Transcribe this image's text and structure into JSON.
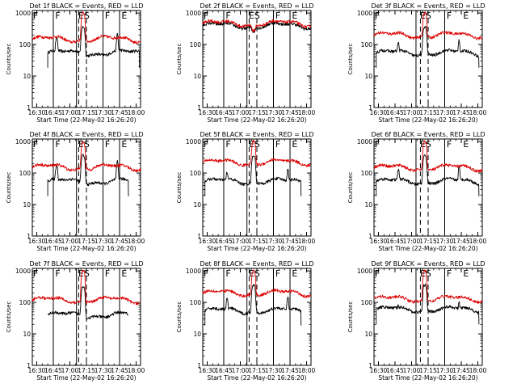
{
  "figure": {
    "panel_titles": [
      "Det 1f BLACK = Events, RED = LLD",
      "Det 2f BLACK = Events, RED = LLD",
      "Det 3f BLACK = Events, RED = LLD",
      "Det 4f BLACK = Events, RED = LLD",
      "Det 5f BLACK = Events, RED = LLD",
      "Det 6f BLACK = Events, RED = LLD",
      "Det 7f BLACK = Events, RED = LLD",
      "Det 8f BLACK = Events, RED = LLD",
      "Det 9f BLACK = Events, RED = LLD"
    ],
    "ylabel": "Counts/sec",
    "xlabel": "Start Time (22-May-02 16:26:20)",
    "x_ticks": [
      "16:30",
      "16:45",
      "17:00",
      "17:15",
      "17:30",
      "17:45",
      "18:00"
    ],
    "y_ticks": [
      "1",
      "10",
      "100",
      "1000"
    ],
    "markers": [
      "F",
      "S",
      "E"
    ],
    "colors": {
      "events": "#000000",
      "lld": "#dd0000",
      "axes": "#000000",
      "background": "#ffffff"
    }
  },
  "chart_data": [
    {
      "type": "line",
      "title": "Det 1f BLACK = Events, RED = LLD",
      "xlabel": "Start Time (22-May-02 16:26:20)",
      "ylabel": "Counts/sec",
      "x_range": [
        "16:26",
        "18:04"
      ],
      "y_scale": "log",
      "ylim": [
        1,
        1200
      ],
      "series": [
        {
          "name": "Events",
          "color": "#000000",
          "start": "16:40",
          "end": "18:03",
          "baseline": 55,
          "peak": 360,
          "edge_spike": 210
        },
        {
          "name": "LLD",
          "color": "#dd0000",
          "start": "16:26",
          "end": "18:04",
          "baseline": 150,
          "peak": 1000,
          "edge_spike": 0
        }
      ],
      "vertical_lines_solid": [
        "16:45",
        "17:06",
        "17:30",
        "17:45"
      ],
      "vertical_lines_dashed": [
        "17:08",
        "17:15"
      ],
      "flare_peak": "17:12",
      "marker_times": {
        "F": [
          "16:46",
          "17:31"
        ],
        "S": [
          "17:12"
        ],
        "E": [
          "17:07",
          "17:46"
        ]
      }
    },
    {
      "type": "line",
      "title": "Det 2f BLACK = Events, RED = LLD",
      "xlabel": "Start Time (22-May-02 16:26:20)",
      "ylabel": "Counts/sec",
      "x_range": [
        "16:26",
        "18:04"
      ],
      "y_scale": "log",
      "ylim": [
        1,
        1200
      ],
      "series": [
        {
          "name": "Events",
          "color": "#000000",
          "start": "16:26",
          "end": "18:04",
          "baseline": 400,
          "peak": 260,
          "edge_spike": 0
        },
        {
          "name": "LLD",
          "color": "#dd0000",
          "start": "16:26",
          "end": "18:04",
          "baseline": 470,
          "peak": 270,
          "edge_spike": 0
        }
      ],
      "vertical_lines_solid": [
        "16:45",
        "17:06",
        "17:30",
        "17:45"
      ],
      "vertical_lines_dashed": [
        "17:08",
        "17:15"
      ],
      "flare_peak": "17:12",
      "marker_times": {
        "F": [
          "16:46",
          "17:31"
        ],
        "S": [
          "17:12"
        ],
        "E": [
          "17:07",
          "17:46"
        ]
      }
    },
    {
      "type": "line",
      "title": "Det 3f BLACK = Events, RED = LLD",
      "xlabel": "Start Time (22-May-02 16:26:20)",
      "ylabel": "Counts/sec",
      "x_range": [
        "16:26",
        "18:04"
      ],
      "y_scale": "log",
      "ylim": [
        1,
        1200
      ],
      "series": [
        {
          "name": "Events",
          "color": "#000000",
          "start": "16:28",
          "end": "18:01",
          "baseline": 55,
          "peak": 360,
          "edge_spike": 140
        },
        {
          "name": "LLD",
          "color": "#dd0000",
          "start": "16:26",
          "end": "18:04",
          "baseline": 200,
          "peak": 1000,
          "edge_spike": 0
        }
      ],
      "vertical_lines_solid": [
        "17:04",
        "17:30"
      ],
      "vertical_lines_dashed": [
        "17:08",
        "17:15"
      ],
      "flare_peak": "17:12",
      "marker_times": {
        "F": [
          "17:31"
        ],
        "S": [
          "17:12"
        ],
        "E": [
          "17:07",
          "17:46"
        ]
      }
    },
    {
      "type": "line",
      "title": "Det 4f BLACK = Events, RED = LLD",
      "xlabel": "Start Time (22-May-02 16:26:20)",
      "ylabel": "Counts/sec",
      "x_range": [
        "16:26",
        "18:04"
      ],
      "y_scale": "log",
      "ylim": [
        1,
        1200
      ],
      "series": [
        {
          "name": "Events",
          "color": "#000000",
          "start": "16:40",
          "end": "17:53",
          "baseline": 55,
          "peak": 360,
          "edge_spike": 230
        },
        {
          "name": "LLD",
          "color": "#dd0000",
          "start": "16:26",
          "end": "18:04",
          "baseline": 155,
          "peak": 1000,
          "edge_spike": 0
        }
      ],
      "vertical_lines_solid": [
        "16:45",
        "17:06",
        "17:30",
        "17:45"
      ],
      "vertical_lines_dashed": [
        "17:08",
        "17:15"
      ],
      "flare_peak": "17:12",
      "marker_times": {
        "F": [
          "16:46",
          "17:31"
        ],
        "S": [
          "17:12"
        ],
        "E": [
          "17:07",
          "17:46"
        ]
      }
    },
    {
      "type": "line",
      "title": "Det 5f BLACK = Events, RED = LLD",
      "xlabel": "Start Time (22-May-02 16:26:20)",
      "ylabel": "Counts/sec",
      "x_range": [
        "16:26",
        "18:04"
      ],
      "y_scale": "log",
      "ylim": [
        1,
        1200
      ],
      "series": [
        {
          "name": "Events",
          "color": "#000000",
          "start": "16:28",
          "end": "17:55",
          "baseline": 55,
          "peak": 360,
          "edge_spike": 130
        },
        {
          "name": "LLD",
          "color": "#dd0000",
          "start": "16:26",
          "end": "18:04",
          "baseline": 220,
          "peak": 1000,
          "edge_spike": 0
        }
      ],
      "vertical_lines_solid": [
        "16:45",
        "17:06",
        "17:30",
        "17:45"
      ],
      "vertical_lines_dashed": [
        "17:08",
        "17:15"
      ],
      "flare_peak": "17:12",
      "marker_times": {
        "F": [
          "16:46",
          "17:31"
        ],
        "S": [
          "17:12"
        ],
        "E": [
          "17:07",
          "17:46"
        ]
      }
    },
    {
      "type": "line",
      "title": "Det 6f BLACK = Events, RED = LLD",
      "xlabel": "Start Time (22-May-02 16:26:20)",
      "ylabel": "Counts/sec",
      "x_range": [
        "16:26",
        "18:04"
      ],
      "y_scale": "log",
      "ylim": [
        1,
        1200
      ],
      "series": [
        {
          "name": "Events",
          "color": "#000000",
          "start": "16:28",
          "end": "18:01",
          "baseline": 55,
          "peak": 360,
          "edge_spike": 160
        },
        {
          "name": "LLD",
          "color": "#dd0000",
          "start": "16:26",
          "end": "18:04",
          "baseline": 150,
          "peak": 1000,
          "edge_spike": 0
        }
      ],
      "vertical_lines_solid": [
        "17:04",
        "17:30"
      ],
      "vertical_lines_dashed": [
        "17:08",
        "17:15"
      ],
      "flare_peak": "17:12",
      "marker_times": {
        "F": [
          "17:31"
        ],
        "S": [
          "17:12"
        ],
        "E": [
          "17:07",
          "17:46"
        ]
      }
    },
    {
      "type": "line",
      "title": "Det 7f BLACK = Events, RED = LLD",
      "xlabel": "Start Time (22-May-02 16:26:20)",
      "ylabel": "Counts/sec",
      "x_range": [
        "16:26",
        "18:04"
      ],
      "y_scale": "log",
      "ylim": [
        1,
        1200
      ],
      "series": [
        {
          "name": "Events",
          "color": "#000000",
          "start": "16:40",
          "end": "17:53",
          "baseline": 40,
          "peak": 330,
          "edge_spike": 0
        },
        {
          "name": "LLD",
          "color": "#dd0000",
          "start": "16:26",
          "end": "18:04",
          "baseline": 120,
          "peak": 1000,
          "edge_spike": 0
        }
      ],
      "vertical_lines_solid": [
        "16:45",
        "17:06",
        "17:30",
        "17:45"
      ],
      "vertical_lines_dashed": [
        "17:08",
        "17:15"
      ],
      "flare_peak": "17:12",
      "marker_times": {
        "F": [
          "16:46",
          "17:31"
        ],
        "S": [
          "17:12"
        ],
        "E": [
          "17:07",
          "17:46"
        ]
      }
    },
    {
      "type": "line",
      "title": "Det 8f BLACK = Events, RED = LLD",
      "xlabel": "Start Time (22-May-02 16:26:20)",
      "ylabel": "Counts/sec",
      "x_range": [
        "16:26",
        "18:04"
      ],
      "y_scale": "log",
      "ylim": [
        1,
        1200
      ],
      "series": [
        {
          "name": "Events",
          "color": "#000000",
          "start": "16:28",
          "end": "17:55",
          "baseline": 55,
          "peak": 360,
          "edge_spike": 160
        },
        {
          "name": "LLD",
          "color": "#dd0000",
          "start": "16:26",
          "end": "18:04",
          "baseline": 200,
          "peak": 1000,
          "edge_spike": 0
        }
      ],
      "vertical_lines_solid": [
        "16:45",
        "17:06",
        "17:30",
        "17:45"
      ],
      "vertical_lines_dashed": [
        "17:08",
        "17:15"
      ],
      "flare_peak": "17:12",
      "marker_times": {
        "F": [
          "16:46",
          "17:31"
        ],
        "S": [
          "17:12"
        ],
        "E": [
          "17:07",
          "17:46"
        ]
      }
    },
    {
      "type": "line",
      "title": "Det 9f BLACK = Events, RED = LLD",
      "xlabel": "Start Time (22-May-02 16:26:20)",
      "ylabel": "Counts/sec",
      "x_range": [
        "16:26",
        "18:04"
      ],
      "y_scale": "log",
      "ylim": [
        1,
        1200
      ],
      "series": [
        {
          "name": "Events",
          "color": "#000000",
          "start": "16:28",
          "end": "18:01",
          "baseline": 60,
          "peak": 360,
          "edge_spike": 100
        },
        {
          "name": "LLD",
          "color": "#dd0000",
          "start": "16:26",
          "end": "18:04",
          "baseline": 130,
          "peak": 1000,
          "edge_spike": 0
        }
      ],
      "vertical_lines_solid": [
        "17:04",
        "17:30"
      ],
      "vertical_lines_dashed": [
        "17:08",
        "17:15"
      ],
      "flare_peak": "17:12",
      "marker_times": {
        "F": [
          "17:31"
        ],
        "S": [
          "17:12"
        ],
        "E": [
          "17:07",
          "17:46"
        ]
      }
    }
  ]
}
